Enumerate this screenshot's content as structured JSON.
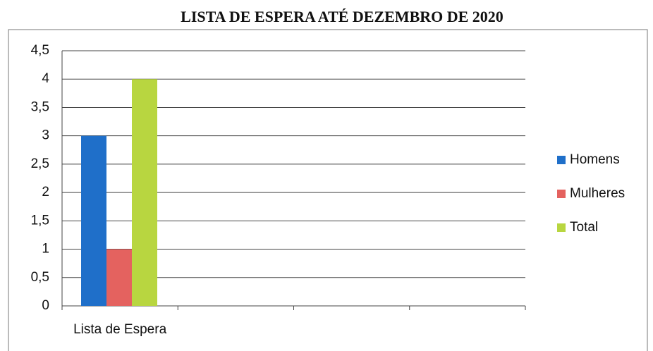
{
  "chart_data": {
    "type": "bar",
    "title": "LISTA DE ESPERA ATÉ DEZEMBRO DE 2020",
    "categories": [
      "Lista de Espera",
      null,
      null,
      null
    ],
    "series": [
      {
        "name": "Homens",
        "color": "#1f6fc9",
        "values": [
          3,
          null,
          null,
          null
        ]
      },
      {
        "name": "Mulheres",
        "color": "#e4625f",
        "values": [
          1,
          null,
          null,
          null
        ]
      },
      {
        "name": "Total",
        "color": "#b8d640",
        "values": [
          4,
          null,
          null,
          null
        ]
      }
    ],
    "ylim": [
      0,
      4.5
    ],
    "yticks": [
      0,
      {
        "value": 0.5,
        "label": "0,5"
      },
      1,
      {
        "value": 1.5,
        "label": "1,5"
      },
      2,
      {
        "value": 2.5,
        "label": "2,5"
      },
      3,
      {
        "value": 3.5,
        "label": "3,5"
      },
      4,
      {
        "value": 4.5,
        "label": "4,5"
      }
    ],
    "grid": true,
    "legend": "right"
  }
}
